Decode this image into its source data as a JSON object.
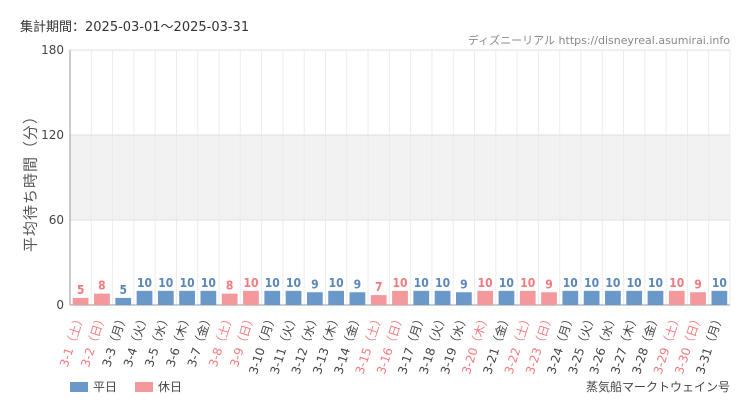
{
  "header": {
    "period": "集計期間：2025-03-01～2025-03-31",
    "source": "ディズニーリアル https://disneyreal.asumirai.info"
  },
  "attraction": "蒸気船マークトウェイン号",
  "legend": [
    {
      "label": "平日",
      "color": "#6a99c9"
    },
    {
      "label": "休日",
      "color": "#f4999b"
    }
  ],
  "chart_data": {
    "type": "bar",
    "ylabel": "平均待ち時間（分）",
    "ylim": [
      0,
      180
    ],
    "yticks": [
      0,
      60,
      120,
      180
    ],
    "shaded_band": [
      60,
      120
    ],
    "grid": true,
    "colors": {
      "weekday": "#6a99c9",
      "holiday": "#f4999b",
      "weekday_label": "#5a87b8",
      "holiday_label": "#f07b7f"
    },
    "categories": [
      "3-1（土）",
      "3-2（日）",
      "3-3（月）",
      "3-4（火）",
      "3-5（水）",
      "3-6（木）",
      "3-7（金）",
      "3-8（土）",
      "3-9（日）",
      "3-10（月）",
      "3-11（火）",
      "3-12（水）",
      "3-13（木）",
      "3-14（金）",
      "3-15（土）",
      "3-16（日）",
      "3-17（月）",
      "3-18（火）",
      "3-19（水）",
      "3-20（木）",
      "3-21（金）",
      "3-22（土）",
      "3-23（日）",
      "3-24（月）",
      "3-25（火）",
      "3-26（水）",
      "3-27（木）",
      "3-28（金）",
      "3-29（土）",
      "3-30（日）",
      "3-31（月）"
    ],
    "values": [
      5,
      8,
      5,
      10,
      10,
      10,
      10,
      8,
      10,
      10,
      10,
      9,
      10,
      9,
      7,
      10,
      10,
      10,
      9,
      10,
      10,
      10,
      9,
      10,
      10,
      10,
      10,
      10,
      10,
      9,
      10
    ],
    "day_type": [
      "休日",
      "休日",
      "平日",
      "平日",
      "平日",
      "平日",
      "平日",
      "休日",
      "休日",
      "平日",
      "平日",
      "平日",
      "平日",
      "平日",
      "休日",
      "休日",
      "平日",
      "平日",
      "平日",
      "休日",
      "平日",
      "休日",
      "休日",
      "平日",
      "平日",
      "平日",
      "平日",
      "平日",
      "休日",
      "休日",
      "平日"
    ]
  }
}
